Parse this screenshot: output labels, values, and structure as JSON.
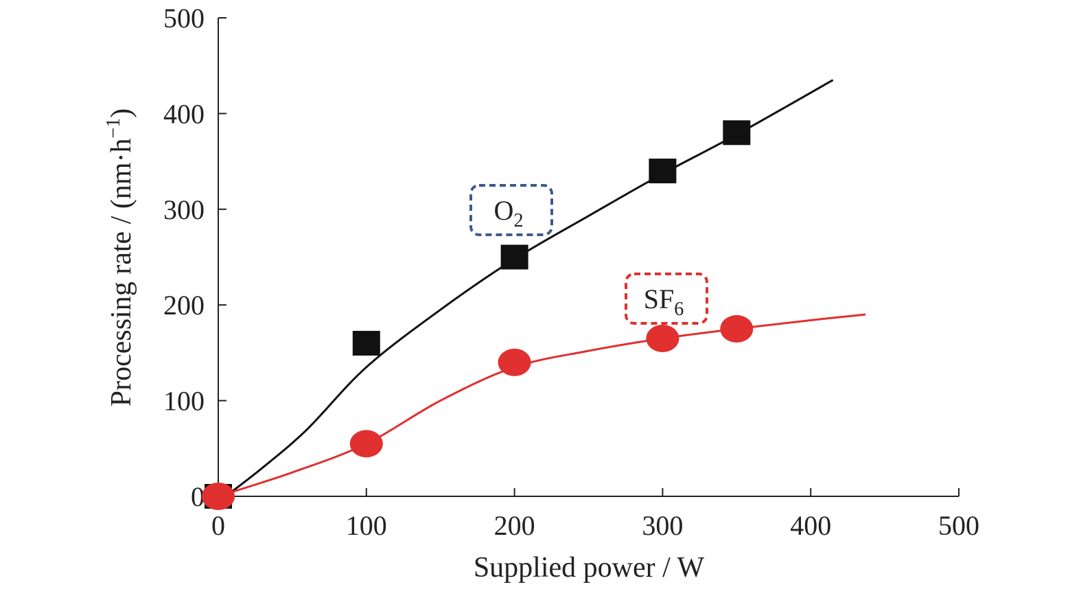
{
  "chart_data": {
    "type": "line",
    "xlabel": "Supplied power / W",
    "ylabel_main": "Processing rate / (nm·h",
    "ylabel_exp": "−1",
    "ylabel_close": ")",
    "xlim": [
      0,
      500
    ],
    "ylim": [
      0,
      500
    ],
    "xticks": [
      0,
      100,
      200,
      300,
      400,
      500
    ],
    "yticks": [
      0,
      100,
      200,
      300,
      400,
      500
    ],
    "grid": false,
    "series": [
      {
        "name": "O2",
        "label_main": "O",
        "label_sub": "2",
        "marker": "square",
        "color": "#111111",
        "box_color": "#3d5b8c",
        "points": [
          [
            0,
            0
          ],
          [
            100,
            160
          ],
          [
            200,
            250
          ],
          [
            300,
            340
          ],
          [
            350,
            380
          ]
        ],
        "curve": [
          [
            5,
            0
          ],
          [
            30,
            30
          ],
          [
            60,
            70
          ],
          [
            100,
            135
          ],
          [
            150,
            195
          ],
          [
            200,
            248
          ],
          [
            250,
            293
          ],
          [
            300,
            337
          ],
          [
            350,
            378
          ],
          [
            415,
            435
          ]
        ]
      },
      {
        "name": "SF6",
        "label_main": "SF",
        "label_sub": "6",
        "marker": "circle",
        "color": "#e03030",
        "box_color": "#e03030",
        "points": [
          [
            0,
            0
          ],
          [
            100,
            55
          ],
          [
            200,
            140
          ],
          [
            300,
            165
          ],
          [
            350,
            175
          ]
        ],
        "curve": [
          [
            0,
            0
          ],
          [
            50,
            25
          ],
          [
            100,
            55
          ],
          [
            150,
            100
          ],
          [
            200,
            135
          ],
          [
            250,
            152
          ],
          [
            300,
            165
          ],
          [
            350,
            175
          ],
          [
            400,
            184
          ],
          [
            437,
            190
          ]
        ]
      }
    ]
  }
}
